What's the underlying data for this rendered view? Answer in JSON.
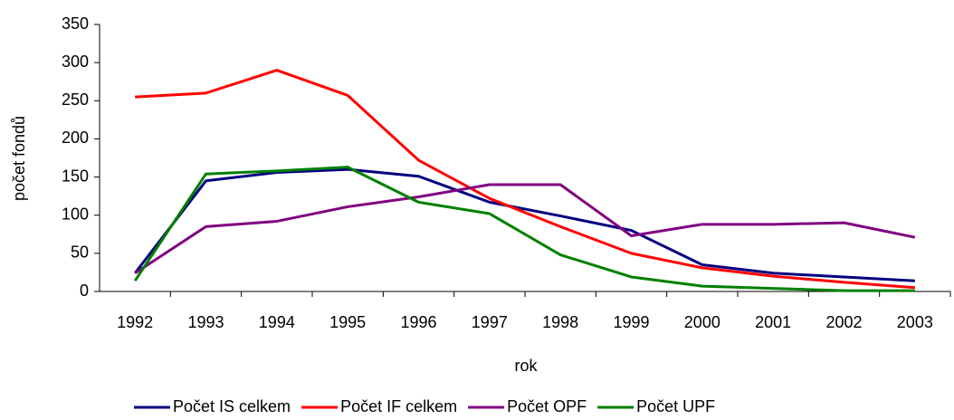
{
  "chart_data": {
    "type": "line",
    "categories": [
      "1992",
      "1993",
      "1994",
      "1995",
      "1996",
      "1997",
      "1998",
      "1999",
      "2000",
      "2001",
      "2002",
      "2003"
    ],
    "series": [
      {
        "name": "Počet IS celkem",
        "color": "#000080",
        "values": [
          24,
          145,
          156,
          160,
          151,
          117,
          99,
          80,
          35,
          24,
          19,
          14
        ]
      },
      {
        "name": "Počet IF celkem",
        "color": "#ff0000",
        "values": [
          255,
          260,
          290,
          257,
          172,
          122,
          85,
          50,
          31,
          20,
          12,
          5
        ]
      },
      {
        "name": "Počet OPF",
        "color": "#800080",
        "values": [
          24,
          85,
          92,
          111,
          124,
          140,
          140,
          73,
          88,
          88,
          90,
          71
        ]
      },
      {
        "name": "Počet UPF",
        "color": "#008000",
        "values": [
          14,
          154,
          158,
          163,
          117,
          102,
          48,
          19,
          7,
          4,
          1,
          1
        ]
      }
    ],
    "xlabel": "rok",
    "ylabel": "počet fondů",
    "ylim": [
      0,
      350
    ],
    "yticks": [
      0,
      50,
      100,
      150,
      200,
      250,
      300,
      350
    ],
    "legend": "bottom"
  }
}
